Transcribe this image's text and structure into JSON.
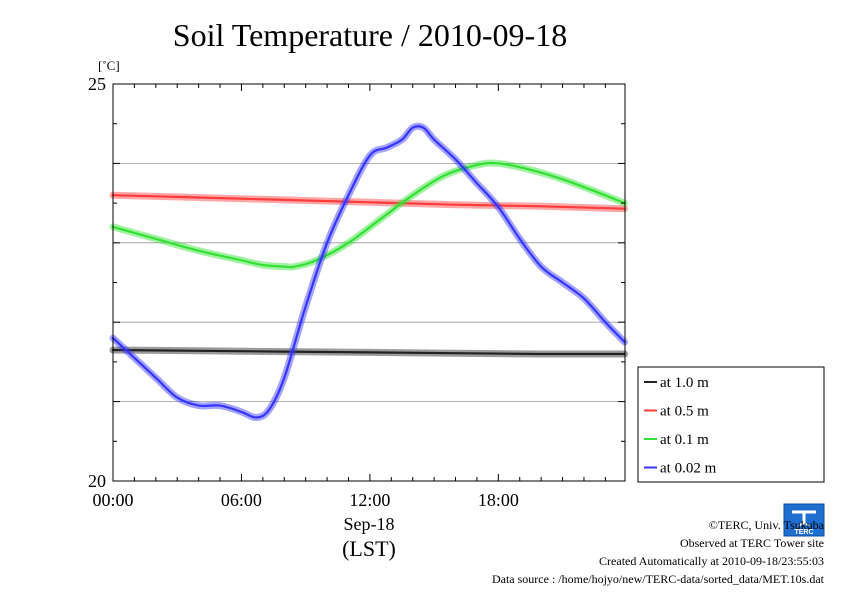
{
  "chart_data": {
    "type": "line",
    "title": "Soil Temperature / 2010-09-18",
    "ylabel": "[˚C]",
    "xlabel_top": "Sep-18",
    "xlabel_bottom": "(LST)",
    "ylim": [
      20,
      25
    ],
    "xlim": [
      0,
      23.917
    ],
    "y_tick_labels": [
      {
        "value": 25,
        "label": "25"
      },
      {
        "value": 20,
        "label": "20"
      }
    ],
    "y_gridlines": [
      21,
      22,
      23,
      24
    ],
    "x_tick_labels": [
      {
        "value": 0,
        "label": "00:00"
      },
      {
        "value": 6,
        "label": "06:00"
      },
      {
        "value": 12,
        "label": "12:00"
      },
      {
        "value": 18,
        "label": "18:00"
      }
    ],
    "legend_position": "right",
    "series": [
      {
        "name": "at 1.0 m",
        "color": "#222222",
        "x": [
          0,
          4,
          8,
          12,
          16,
          20,
          23.9
        ],
        "y": [
          21.65,
          21.64,
          21.63,
          21.62,
          21.61,
          21.6,
          21.6
        ]
      },
      {
        "name": "at 0.5 m",
        "color": "#ff3b3b",
        "x": [
          0,
          4,
          8,
          12,
          16,
          20,
          23.9
        ],
        "y": [
          23.6,
          23.57,
          23.54,
          23.51,
          23.48,
          23.46,
          23.43
        ]
      },
      {
        "name": "at 0.1 m",
        "color": "#33e033",
        "x": [
          0,
          2,
          4,
          6,
          7,
          8,
          8.5,
          9.5,
          11,
          12.5,
          14,
          15.5,
          17,
          18,
          19.5,
          21,
          22.5,
          23.9
        ],
        "y": [
          23.2,
          23.05,
          22.9,
          22.78,
          22.72,
          22.7,
          22.7,
          22.78,
          23.0,
          23.3,
          23.6,
          23.85,
          23.98,
          24.0,
          23.92,
          23.8,
          23.65,
          23.5
        ],
        "smooth": true
      },
      {
        "name": "at 0.02 m",
        "color": "#3535ff",
        "x": [
          0,
          1,
          2,
          3,
          4,
          5,
          6,
          6.7,
          7.3,
          8,
          9,
          10,
          11,
          12,
          12.8,
          13.5,
          14,
          14.5,
          15,
          16,
          17,
          18,
          19,
          20,
          21,
          22,
          23,
          23.9
        ],
        "y": [
          21.8,
          21.55,
          21.3,
          21.05,
          20.95,
          20.95,
          20.87,
          20.8,
          20.9,
          21.3,
          22.2,
          23.0,
          23.6,
          24.1,
          24.2,
          24.3,
          24.45,
          24.45,
          24.3,
          24.05,
          23.75,
          23.45,
          23.05,
          22.7,
          22.5,
          22.3,
          22.0,
          21.75
        ],
        "smooth": true
      }
    ]
  },
  "logo": {
    "text": "TERC"
  },
  "footer": {
    "copyright": "©TERC, Univ. Tsukuba",
    "observed": "Observed at TERC Tower site",
    "created": "Created Automatically at 2010-09-18/23:55:03",
    "source": "Data source : /home/hojyo/new/TERC-data/sorted_data/MET.10s.dat"
  }
}
